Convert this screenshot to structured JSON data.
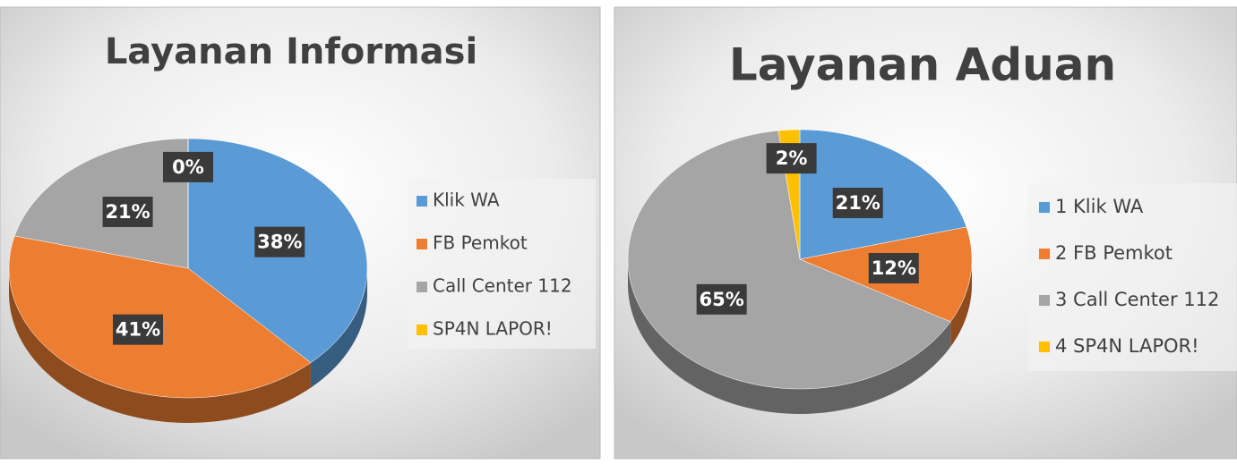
{
  "chart_data": [
    {
      "type": "pie",
      "title": "Layanan Informasi",
      "categories": [
        "Klik WA",
        "FB Pemkot",
        "Call Center 112",
        "SP4N LAPOR!"
      ],
      "values": [
        38,
        41,
        21,
        0
      ],
      "value_labels": [
        "38%",
        "41%",
        "21%",
        "0%"
      ],
      "colors": [
        "#5b9bd5",
        "#ed7d31",
        "#a5a5a5",
        "#ffc000"
      ],
      "legend": "right"
    },
    {
      "type": "pie",
      "title": "Layanan Aduan",
      "categories": [
        "1 Klik WA",
        "2 FB Pemkot",
        "3 Call Center 112",
        "4 SP4N LAPOR!"
      ],
      "values": [
        21,
        12,
        65,
        2
      ],
      "value_labels": [
        "21%",
        "12%",
        "65%",
        "2%"
      ],
      "colors": [
        "#5b9bd5",
        "#ed7d31",
        "#a5a5a5",
        "#ffc000"
      ],
      "legend": "right"
    }
  ]
}
